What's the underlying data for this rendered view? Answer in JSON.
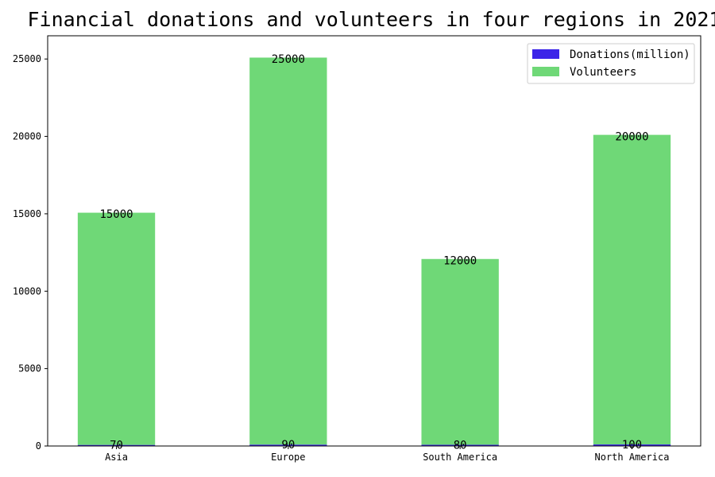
{
  "chart_data": {
    "type": "bar",
    "stacked": true,
    "title": "Financial donations and volunteers in four regions in 2021",
    "categories": [
      "Asia",
      "Europe",
      "South America",
      "North America"
    ],
    "series": [
      {
        "name": "Donations(million)",
        "values": [
          70,
          90,
          80,
          100
        ],
        "color": "#3b24e8"
      },
      {
        "name": "Volunteers",
        "values": [
          15000,
          25000,
          12000,
          20000
        ],
        "color": "#6fd877"
      }
    ],
    "ylim": [
      0,
      26500
    ],
    "yticks": [
      0,
      5000,
      10000,
      15000,
      20000,
      25000
    ],
    "legend_position": "top-right",
    "grid": false
  }
}
